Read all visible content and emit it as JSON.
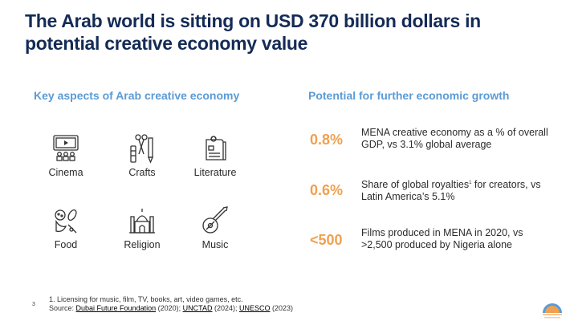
{
  "title": "The Arab world is sitting on USD 370 billion dollars in potential creative economy value",
  "left_section": {
    "heading": "Key aspects of Arab creative economy",
    "aspects": [
      {
        "label": "Cinema",
        "icon": "cinema-icon"
      },
      {
        "label": "Crafts",
        "icon": "crafts-icon"
      },
      {
        "label": "Literature",
        "icon": "literature-icon"
      },
      {
        "label": "Food",
        "icon": "food-icon"
      },
      {
        "label": "Religion",
        "icon": "religion-icon"
      },
      {
        "label": "Music",
        "icon": "music-icon"
      }
    ]
  },
  "right_section": {
    "heading": "Potential for further economic growth",
    "stats": [
      {
        "value": "0.8%",
        "description": "MENA creative economy as a % of overall GDP, vs 3.1% global average"
      },
      {
        "value": "0.6%",
        "description_before": "Share of global royalties",
        "superscript": "1",
        "description_after": " for creators, vs Latin America’s 5.1%"
      },
      {
        "value": "<500",
        "description": "Films produced in MENA in 2020, vs >2,500 produced by Nigeria alone"
      }
    ]
  },
  "footnote": {
    "note": "1. Licensing for music, film, TV, books, art, video games, etc.",
    "source_prefix": "Source: ",
    "sources": [
      {
        "name": "Dubai Future Foundation",
        "year": " (2020); "
      },
      {
        "name": "UNCTAD",
        "year": " (2024); "
      },
      {
        "name": "UNESCO",
        "year": " (2023)"
      }
    ]
  },
  "page_number": "3",
  "colors": {
    "title": "#142b56",
    "heading": "#5b9bd5",
    "stat_value": "#f0a050",
    "icon_stroke": "#333333"
  }
}
